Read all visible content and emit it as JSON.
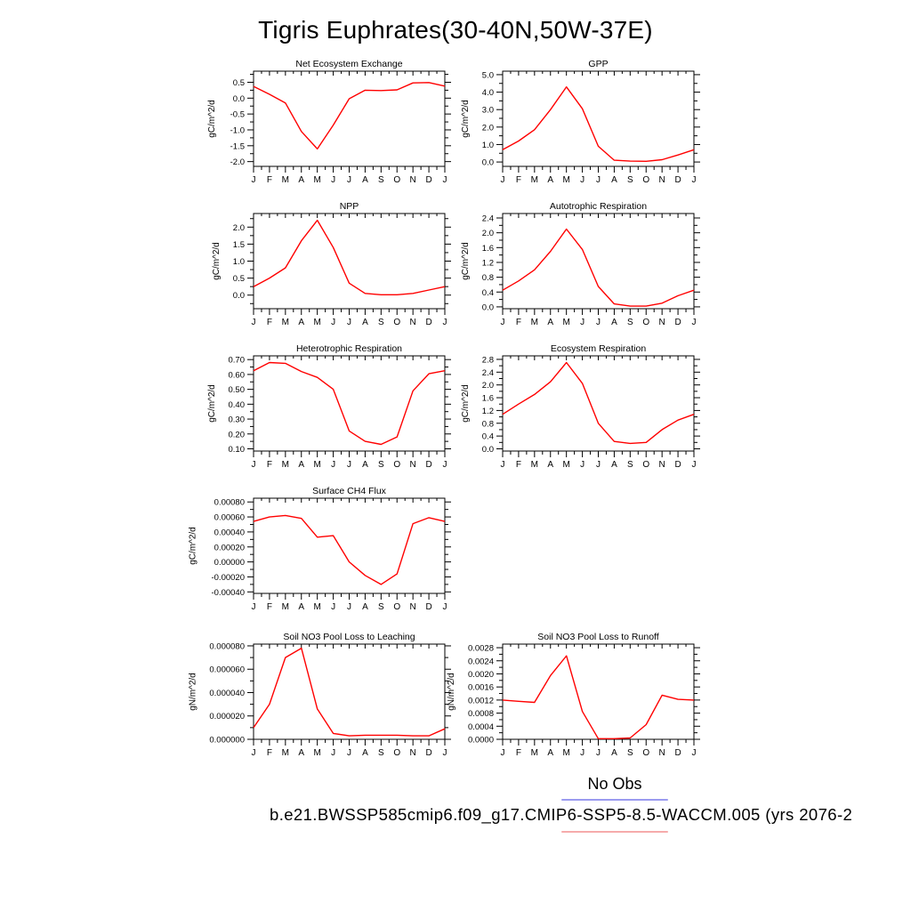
{
  "page_title": "Tigris Euphrates(30-40N,50W-37E)",
  "colors": {
    "series_line": "#ff0000",
    "axis": "#000000",
    "background": "#ffffff",
    "legend_no_obs_line": "#9b9bf0",
    "legend_model_line": "#f6abab"
  },
  "legend": {
    "position": "below",
    "no_obs_label": "No Obs",
    "model_label": "b.e21.BWSSP585cmip6.f09_g17.CMIP6-SSP5-8.5-WACCM.005 (yrs 2076-2"
  },
  "months": [
    "J",
    "F",
    "M",
    "A",
    "M",
    "J",
    "J",
    "A",
    "S",
    "O",
    "N",
    "D",
    "J"
  ],
  "chart_data": [
    {
      "id": "net-ecosystem-exchange",
      "type": "line",
      "title": "Net Ecosystem Exchange",
      "ylabel": "gC/m^2/d",
      "xlabel": "",
      "grid": false,
      "categories": [
        "J",
        "F",
        "M",
        "A",
        "M",
        "J",
        "J",
        "A",
        "S",
        "O",
        "N",
        "D",
        "J"
      ],
      "values": [
        0.37,
        0.12,
        -0.15,
        -1.05,
        -1.6,
        -0.85,
        -0.02,
        0.25,
        0.24,
        0.26,
        0.48,
        0.49,
        0.38
      ],
      "yticks": [
        0.5,
        0.0,
        -0.5,
        -1.0,
        -1.5,
        -2.0
      ],
      "ytick_labels": [
        "0.5",
        "0.0",
        "-0.5",
        "-1.0",
        "-1.5",
        "-2.0"
      ],
      "ylim": [
        -2.15,
        0.85
      ]
    },
    {
      "id": "gpp",
      "type": "line",
      "title": "GPP",
      "ylabel": "gC/m^2/d",
      "xlabel": "",
      "grid": false,
      "categories": [
        "J",
        "F",
        "M",
        "A",
        "M",
        "J",
        "J",
        "A",
        "S",
        "O",
        "N",
        "D",
        "J"
      ],
      "values": [
        0.7,
        1.2,
        1.85,
        3.0,
        4.3,
        3.05,
        0.9,
        0.1,
        0.05,
        0.04,
        0.13,
        0.4,
        0.7
      ],
      "yticks": [
        5.0,
        4.0,
        3.0,
        2.0,
        1.0,
        0.0
      ],
      "ytick_labels": [
        "5.0",
        "4.0",
        "3.0",
        "2.0",
        "1.0",
        "0.0"
      ],
      "ylim": [
        -0.25,
        5.2
      ]
    },
    {
      "id": "npp",
      "type": "line",
      "title": "NPP",
      "ylabel": "gC/m^2/d",
      "xlabel": "",
      "grid": false,
      "categories": [
        "J",
        "F",
        "M",
        "A",
        "M",
        "J",
        "J",
        "A",
        "S",
        "O",
        "N",
        "D",
        "J"
      ],
      "values": [
        0.25,
        0.5,
        0.8,
        1.6,
        2.2,
        1.4,
        0.35,
        0.05,
        0.01,
        0.01,
        0.05,
        0.15,
        0.25
      ],
      "yticks": [
        2.0,
        1.5,
        1.0,
        0.5,
        0.0
      ],
      "ytick_labels": [
        "2.0",
        "1.5",
        "1.0",
        "0.5",
        "0.0"
      ],
      "ylim": [
        -0.4,
        2.4
      ]
    },
    {
      "id": "autotrophic-respiration",
      "type": "line",
      "title": "Autotrophic Respiration",
      "ylabel": "gC/m^2/d",
      "xlabel": "",
      "grid": false,
      "categories": [
        "J",
        "F",
        "M",
        "A",
        "M",
        "J",
        "J",
        "A",
        "S",
        "O",
        "N",
        "D",
        "J"
      ],
      "values": [
        0.45,
        0.7,
        1.0,
        1.5,
        2.1,
        1.55,
        0.55,
        0.08,
        0.02,
        0.02,
        0.1,
        0.3,
        0.45
      ],
      "yticks": [
        2.4,
        2.0,
        1.6,
        1.2,
        0.8,
        0.4,
        0.0
      ],
      "ytick_labels": [
        "2.4",
        "2.0",
        "1.6",
        "1.2",
        "0.8",
        "0.4",
        "0.0"
      ],
      "ylim": [
        -0.05,
        2.52
      ]
    },
    {
      "id": "heterotrophic-respiration",
      "type": "line",
      "title": "Heterotrophic Respiration",
      "ylabel": "gC/m^2/d",
      "xlabel": "",
      "grid": false,
      "categories": [
        "J",
        "F",
        "M",
        "A",
        "M",
        "J",
        "J",
        "A",
        "S",
        "O",
        "N",
        "D",
        "J"
      ],
      "values": [
        0.625,
        0.68,
        0.675,
        0.62,
        0.58,
        0.5,
        0.22,
        0.15,
        0.13,
        0.18,
        0.49,
        0.605,
        0.625
      ],
      "yticks": [
        0.7,
        0.6,
        0.5,
        0.4,
        0.3,
        0.2,
        0.1
      ],
      "ytick_labels": [
        "0.70",
        "0.60",
        "0.50",
        "0.40",
        "0.30",
        "0.20",
        "0.10"
      ],
      "ylim": [
        0.085,
        0.725
      ]
    },
    {
      "id": "ecosystem-respiration",
      "type": "line",
      "title": "Ecosystem Respiration",
      "ylabel": "gC/m^2/d",
      "xlabel": "",
      "grid": false,
      "categories": [
        "J",
        "F",
        "M",
        "A",
        "M",
        "J",
        "J",
        "A",
        "S",
        "O",
        "N",
        "D",
        "J"
      ],
      "values": [
        1.08,
        1.4,
        1.7,
        2.1,
        2.7,
        2.05,
        0.8,
        0.23,
        0.17,
        0.2,
        0.6,
        0.9,
        1.08
      ],
      "yticks": [
        2.8,
        2.4,
        2.0,
        1.6,
        1.2,
        0.8,
        0.4,
        0.0
      ],
      "ytick_labels": [
        "2.8",
        "2.4",
        "2.0",
        "1.6",
        "1.2",
        "0.8",
        "0.4",
        "0.0"
      ],
      "ylim": [
        -0.07,
        2.91
      ]
    },
    {
      "id": "surface-ch4-flux",
      "type": "line",
      "title": "Surface CH4 Flux",
      "ylabel": "gC/m^2/d",
      "xlabel": "",
      "grid": false,
      "categories": [
        "J",
        "F",
        "M",
        "A",
        "M",
        "J",
        "J",
        "A",
        "S",
        "O",
        "N",
        "D",
        "J"
      ],
      "values": [
        0.00054,
        0.0006,
        0.00062,
        0.00058,
        0.00033,
        0.00035,
        0.0,
        -0.00018,
        -0.0003,
        -0.00016,
        0.00051,
        0.00059,
        0.00054
      ],
      "yticks": [
        0.0008,
        0.0006,
        0.0004,
        0.0002,
        0.0,
        -0.0002,
        -0.0004
      ],
      "ytick_labels": [
        "0.00080",
        "0.00060",
        "0.00040",
        "0.00020",
        "0.00000",
        "-0.00020",
        "-0.00040"
      ],
      "ylim": [
        -0.00042,
        0.00085
      ]
    },
    {
      "id": "soil-no3-loss-leaching",
      "type": "line",
      "title": "Soil NO3 Pool Loss to Leaching",
      "ylabel": "gN/m^2/d",
      "xlabel": "",
      "grid": false,
      "categories": [
        "J",
        "F",
        "M",
        "A",
        "M",
        "J",
        "J",
        "A",
        "S",
        "O",
        "N",
        "D",
        "J"
      ],
      "values": [
        1e-05,
        3e-05,
        7e-05,
        7.8e-05,
        2.6e-05,
        5e-06,
        3e-06,
        3.5e-06,
        3.5e-06,
        3.5e-06,
        3e-06,
        3e-06,
        9e-06
      ],
      "yticks": [
        8e-05,
        6e-05,
        4e-05,
        2e-05,
        0.0
      ],
      "ytick_labels": [
        "0.000080",
        "0.000060",
        "0.000040",
        "0.000020",
        "0.000000"
      ],
      "ylim": [
        0,
        8.15e-05
      ]
    },
    {
      "id": "soil-no3-loss-runoff",
      "type": "line",
      "title": "Soil NO3 Pool Loss to Runoff",
      "ylabel": "gN/m^2/d",
      "xlabel": "",
      "grid": false,
      "categories": [
        "J",
        "F",
        "M",
        "A",
        "M",
        "J",
        "J",
        "A",
        "S",
        "O",
        "N",
        "D",
        "J"
      ],
      "values": [
        0.0012,
        0.00116,
        0.00113,
        0.00195,
        0.00255,
        0.00085,
        2e-05,
        2e-05,
        4e-05,
        0.00045,
        0.00135,
        0.00122,
        0.0012
      ],
      "yticks": [
        0.0028,
        0.0024,
        0.002,
        0.0016,
        0.0012,
        0.0008,
        0.0004,
        0.0
      ],
      "ytick_labels": [
        "0.0028",
        "0.0024",
        "0.0020",
        "0.0016",
        "0.0012",
        "0.0008",
        "0.0004",
        "0.0000"
      ],
      "ylim": [
        0,
        0.00291
      ]
    }
  ]
}
